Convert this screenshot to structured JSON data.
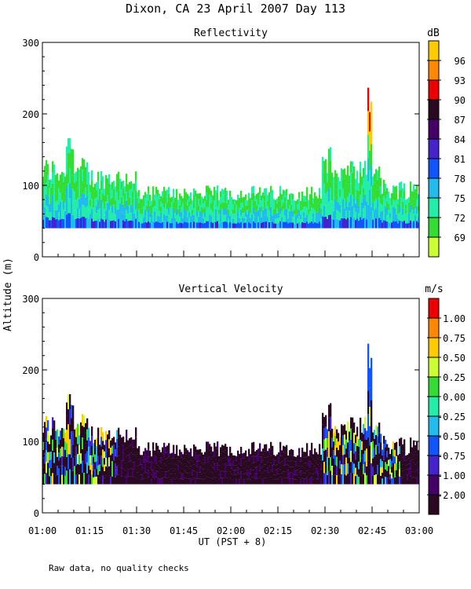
{
  "chart_data": [
    {
      "type": "heatmap",
      "title": "Reflectivity",
      "ylabel": "Altitude (m)",
      "xlabel": "UT   (PST + 8)",
      "ylim": [
        0,
        300
      ],
      "xlim": [
        "01:00",
        "03:00"
      ],
      "yticks": [
        "0",
        "100",
        "200",
        "300"
      ],
      "xticks": [
        "01:00",
        "01:15",
        "01:30",
        "01:45",
        "02:00",
        "02:15",
        "02:30",
        "02:45",
        "03:00"
      ],
      "colorbar": {
        "unit": "dB",
        "labels": [
          "69",
          "72",
          "75",
          "78",
          "81",
          "84",
          "87",
          "90",
          "93",
          "96"
        ],
        "colors": [
          "#ccff33",
          "#33dd33",
          "#22eeaa",
          "#22bbee",
          "#1155ff",
          "#4422cc",
          "#440066",
          "#2a0a22",
          "#ee0000",
          "#ff8800",
          "#ffcc00"
        ]
      }
    },
    {
      "type": "heatmap",
      "title": "Vertical Velocity",
      "ylabel": "Altitude (m)",
      "xlabel": "UT   (PST + 8)",
      "ylim": [
        0,
        300
      ],
      "xlim": [
        "01:00",
        "03:00"
      ],
      "yticks": [
        "0",
        "100",
        "200",
        "300"
      ],
      "xticks": [
        "01:00",
        "01:15",
        "01:30",
        "01:45",
        "02:00",
        "02:15",
        "02:30",
        "02:45",
        "03:00"
      ],
      "colorbar": {
        "unit": "m/s",
        "labels": [
          "-2.00",
          "-1.00",
          "-0.75",
          "-0.50",
          "-0.25",
          "0.00",
          "0.25",
          "0.50",
          "0.75",
          "1.00"
        ],
        "colors": [
          "#2a0a22",
          "#440066",
          "#4422cc",
          "#1155ff",
          "#22bbee",
          "#22eeaa",
          "#33dd33",
          "#ccff33",
          "#ffcc00",
          "#ff8800",
          "#ee0000"
        ]
      }
    }
  ],
  "header": {
    "title": "Dixon, CA 23 April 2007  Day 113"
  },
  "axis": {
    "ylabel": "Altitude (m)",
    "xlabel": "UT   (PST + 8)"
  },
  "footer": {
    "note": "Raw data, no quality checks"
  }
}
